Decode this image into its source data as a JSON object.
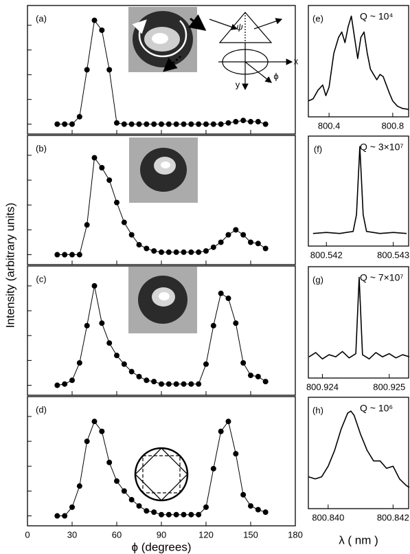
{
  "chart_data": [
    {
      "type": "line",
      "label": "(a)",
      "markers": true,
      "ylabel": "Intensity (arbitrary units)",
      "annotations": [
        "ψ",
        "x",
        "y",
        "ϕ"
      ],
      "xlim": [
        0,
        180
      ],
      "ylim": [
        -0.4,
        4.8
      ],
      "yticks": [
        0,
        1,
        2,
        3,
        4
      ],
      "x": [
        20,
        25,
        30,
        35,
        40,
        45,
        50,
        55,
        60,
        65,
        70,
        75,
        80,
        85,
        90,
        95,
        100,
        105,
        110,
        115,
        120,
        125,
        130,
        135,
        140,
        145,
        150,
        155,
        160
      ],
      "values": [
        0,
        0,
        0,
        0.3,
        2.2,
        4.2,
        3.8,
        2.2,
        0.05,
        0,
        0,
        0,
        0,
        0,
        0,
        0,
        0,
        0,
        0,
        0,
        0,
        0,
        0,
        0.05,
        0.1,
        0.15,
        0.1,
        0.1,
        0
      ],
      "color": "#000000"
    },
    {
      "type": "line",
      "label": "(b)",
      "markers": true,
      "xlim": [
        0,
        180
      ],
      "ylim": [
        -0.4,
        4.8
      ],
      "yticks": [
        0,
        1,
        2,
        3,
        4
      ],
      "x": [
        20,
        25,
        30,
        35,
        40,
        45,
        50,
        55,
        60,
        65,
        70,
        75,
        80,
        85,
        90,
        95,
        100,
        105,
        110,
        115,
        120,
        125,
        130,
        135,
        140,
        145,
        150,
        155,
        160
      ],
      "values": [
        0,
        0,
        0,
        0,
        1.2,
        3.9,
        3.5,
        3.0,
        2.1,
        1.3,
        0.8,
        0.4,
        0.25,
        0.15,
        0.1,
        0.1,
        0.1,
        0.1,
        0.1,
        0.1,
        0.15,
        0.3,
        0.5,
        0.8,
        1.0,
        0.8,
        0.5,
        0.45,
        0.25
      ],
      "color": "#000000"
    },
    {
      "type": "line",
      "label": "(c)",
      "markers": true,
      "xlim": [
        0,
        180
      ],
      "ylim": [
        -0.4,
        4.8
      ],
      "yticks": [
        0,
        1,
        2,
        3,
        4
      ],
      "x": [
        20,
        25,
        30,
        35,
        40,
        45,
        50,
        55,
        60,
        65,
        70,
        75,
        80,
        85,
        90,
        95,
        100,
        105,
        110,
        115,
        120,
        125,
        130,
        135,
        140,
        145,
        150,
        155,
        160
      ],
      "values": [
        0,
        0.05,
        0.2,
        0.9,
        2.4,
        4.0,
        2.5,
        1.7,
        1.2,
        0.85,
        0.55,
        0.35,
        0.2,
        0.15,
        0.05,
        0.05,
        0.05,
        0.05,
        0.05,
        0.05,
        0.85,
        2.4,
        3.7,
        3.5,
        2.5,
        0.9,
        0.4,
        0.35,
        0.15
      ],
      "color": "#000000"
    },
    {
      "type": "line",
      "label": "(d)",
      "markers": true,
      "xlabel": "ϕ (degrees)",
      "xlim": [
        0,
        180
      ],
      "xticks": [
        0,
        30,
        60,
        90,
        120,
        150,
        180
      ],
      "ylim": [
        -0.4,
        4.8
      ],
      "yticks": [
        0,
        1,
        2,
        3,
        4
      ],
      "x": [
        20,
        25,
        30,
        35,
        40,
        45,
        50,
        55,
        60,
        65,
        70,
        75,
        80,
        85,
        90,
        95,
        100,
        105,
        110,
        115,
        120,
        125,
        130,
        135,
        140,
        145,
        150,
        155,
        160
      ],
      "values": [
        0,
        0,
        0.35,
        1.2,
        3.0,
        3.8,
        3.4,
        2.15,
        1.4,
        1.0,
        0.65,
        0.4,
        0.2,
        0.15,
        0.05,
        0.05,
        0.05,
        0.05,
        0.05,
        0.05,
        0.35,
        1.9,
        3.4,
        3.8,
        2.5,
        0.85,
        0.4,
        0.25,
        0.15
      ],
      "color": "#000000"
    },
    {
      "type": "line",
      "label": "(e)",
      "annotation": "Q ~ 10⁴",
      "markers": false,
      "xlim": [
        800.27,
        800.9
      ],
      "xticks": [
        800.4,
        800.8
      ],
      "ylim": [
        0,
        1.05
      ],
      "x": [
        800.27,
        800.3,
        800.33,
        800.36,
        800.38,
        800.4,
        800.43,
        800.46,
        800.48,
        800.5,
        800.52,
        800.54,
        800.56,
        800.58,
        800.6,
        800.62,
        800.64,
        800.66,
        800.68,
        800.7,
        800.72,
        800.74,
        800.76,
        800.78,
        800.8,
        800.83,
        800.86,
        800.9
      ],
      "values": [
        0.15,
        0.17,
        0.25,
        0.3,
        0.2,
        0.28,
        0.6,
        0.75,
        0.8,
        0.7,
        0.85,
        0.95,
        0.75,
        0.55,
        0.75,
        0.8,
        0.6,
        0.45,
        0.4,
        0.35,
        0.4,
        0.38,
        0.3,
        0.22,
        0.15,
        0.1,
        0.08,
        0.07
      ],
      "color": "#000000"
    },
    {
      "type": "line",
      "label": "(f)",
      "annotation": "Q ~ 3×10⁷",
      "markers": false,
      "xlim": [
        800.54173,
        800.54323
      ],
      "xticks": [
        800.542,
        800.543
      ],
      "ylim": [
        0,
        1.05
      ],
      "x": [
        800.5418,
        800.542,
        800.5422,
        800.5424,
        800.54245,
        800.5425,
        800.54255,
        800.5426,
        800.5428,
        800.543,
        800.5432
      ],
      "values": [
        0.12,
        0.13,
        0.12,
        0.14,
        0.3,
        0.95,
        0.3,
        0.14,
        0.12,
        0.13,
        0.12
      ],
      "color": "#000000"
    },
    {
      "type": "line",
      "label": "(g)",
      "annotation": "Q ~ 7×10⁷",
      "markers": false,
      "xlim": [
        800.92379,
        800.92529
      ],
      "xticks": [
        800.924,
        800.925
      ],
      "ylim": [
        0,
        1.05
      ],
      "x": [
        800.9238,
        800.9239,
        800.924,
        800.9241,
        800.9242,
        800.9243,
        800.9244,
        800.9245,
        800.92455,
        800.9246,
        800.9247,
        800.9248,
        800.9249,
        800.925,
        800.9251,
        800.9252,
        800.9253
      ],
      "values": [
        0.2,
        0.24,
        0.18,
        0.22,
        0.2,
        0.25,
        0.19,
        0.23,
        0.95,
        0.22,
        0.18,
        0.24,
        0.2,
        0.23,
        0.19,
        0.22,
        0.2
      ],
      "color": "#000000"
    },
    {
      "type": "line",
      "label": "(h)",
      "annotation": "Q ~ 10⁶",
      "markers": false,
      "xlabel": "λ ( nm )",
      "xlim": [
        800.83939,
        800.84248
      ],
      "xticks": [
        {
          "value": 800.84,
          "label": "800.840"
        },
        800.842
      ],
      "ylim": [
        0,
        1.05
      ],
      "x": [
        800.8394,
        800.8396,
        800.8398,
        800.84,
        800.8402,
        800.8404,
        800.8406,
        800.8407,
        800.8408,
        800.841,
        800.8412,
        800.8414,
        800.8416,
        800.8418,
        800.842,
        800.8422,
        800.8424,
        800.8425
      ],
      "values": [
        0.3,
        0.28,
        0.3,
        0.4,
        0.55,
        0.75,
        0.9,
        0.92,
        0.88,
        0.7,
        0.55,
        0.45,
        0.45,
        0.38,
        0.4,
        0.28,
        0.22,
        0.2
      ],
      "color": "#000000"
    }
  ]
}
